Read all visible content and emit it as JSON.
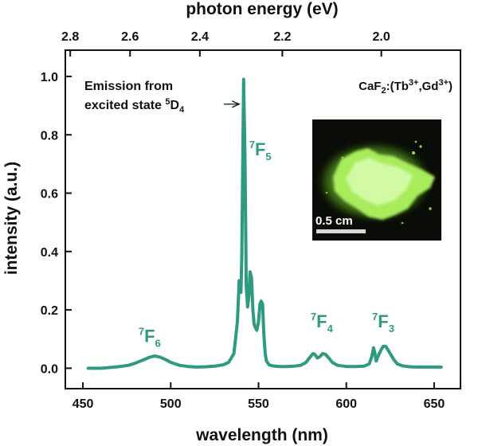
{
  "chart_data": {
    "type": "line",
    "x_label_bottom": "wavelength (nm)",
    "x_label_top": "photon energy (eV)",
    "ylabel": "intensity (a.u.)",
    "xlim": [
      440,
      665
    ],
    "ylim": [
      -0.07,
      1.09
    ],
    "x_ticks": [
      {
        "value": 450,
        "label": "450"
      },
      {
        "value": 500,
        "label": "500"
      },
      {
        "value": 550,
        "label": "550"
      },
      {
        "value": 600,
        "label": "600"
      },
      {
        "value": 650,
        "label": "650"
      }
    ],
    "y_ticks": [
      {
        "value": 0.0,
        "label": "0.0"
      },
      {
        "value": 0.2,
        "label": "0.2"
      },
      {
        "value": 0.4,
        "label": "0.4"
      },
      {
        "value": 0.6,
        "label": "0.6"
      },
      {
        "value": 0.8,
        "label": "0.8"
      },
      {
        "value": 1.0,
        "label": "1.0"
      }
    ],
    "top_ticks": [
      {
        "energy": 2.8,
        "label": "2.8"
      },
      {
        "energy": 2.6,
        "label": "2.6"
      },
      {
        "energy": 2.4,
        "label": "2.4"
      },
      {
        "energy": 2.2,
        "label": "2.2"
      },
      {
        "energy": 2.0,
        "label": "2.0"
      }
    ],
    "series": [
      {
        "name": "emission",
        "color": "#2e9a80",
        "x": [
          453,
          460,
          470,
          476,
          480,
          485,
          488,
          491,
          494,
          497,
          500,
          505,
          510,
          515,
          520,
          525,
          530,
          533,
          536,
          538,
          539,
          540,
          540.5,
          541.5,
          542.3,
          543,
          543.8,
          544.5,
          545.2,
          546,
          546.8,
          547.5,
          548.2,
          549,
          550,
          550.8,
          551.5,
          552.3,
          553,
          553.8,
          554.5,
          556,
          558,
          562,
          566,
          570,
          574,
          577,
          579,
          581,
          582,
          583.5,
          585,
          586.5,
          588,
          590,
          592,
          595,
          600,
          605,
          610,
          613,
          614.5,
          615.5,
          616.3,
          617,
          618,
          619.5,
          621,
          622.5,
          624,
          625.5,
          627,
          629,
          632,
          636,
          640,
          645,
          650,
          654
        ],
        "y": [
          0.0,
          0.0,
          0.005,
          0.01,
          0.018,
          0.03,
          0.038,
          0.042,
          0.038,
          0.03,
          0.02,
          0.01,
          0.006,
          0.004,
          0.005,
          0.007,
          0.012,
          0.02,
          0.05,
          0.16,
          0.3,
          0.26,
          0.38,
          0.99,
          0.72,
          0.28,
          0.21,
          0.25,
          0.33,
          0.31,
          0.2,
          0.15,
          0.14,
          0.13,
          0.16,
          0.22,
          0.23,
          0.22,
          0.12,
          0.05,
          0.025,
          0.012,
          0.008,
          0.006,
          0.006,
          0.007,
          0.01,
          0.02,
          0.035,
          0.05,
          0.048,
          0.035,
          0.04,
          0.05,
          0.048,
          0.035,
          0.02,
          0.01,
          0.006,
          0.006,
          0.007,
          0.015,
          0.04,
          0.07,
          0.05,
          0.025,
          0.04,
          0.06,
          0.075,
          0.075,
          0.06,
          0.045,
          0.03,
          0.015,
          0.008,
          0.005,
          0.004,
          0.004,
          0.004,
          0.004
        ]
      }
    ],
    "peak_labels": [
      {
        "sup": "7",
        "main": "F",
        "sub": "6",
        "x": 488,
        "y": 0.09
      },
      {
        "sup": "7",
        "main": "F",
        "sub": "5",
        "x": 551,
        "y": 0.73
      },
      {
        "sup": "7",
        "main": "F",
        "sub": "4",
        "x": 586,
        "y": 0.14
      },
      {
        "sup": "7",
        "main": "F",
        "sub": "3",
        "x": 621,
        "y": 0.14
      }
    ],
    "annotation": {
      "line1": "Emission from",
      "line2_text": "excited state ",
      "line2_sup": "5",
      "line2_main": "D",
      "line2_sub": "4",
      "arrow_target_x": 539,
      "arrow_target_y": 0.905
    },
    "sample_label": {
      "prefix": "CaF",
      "sub": "2",
      "open": ":(Tb",
      "sup1": "3+",
      "comma": ",Gd",
      "sup2": "3+",
      "close": ")"
    },
    "inset": {
      "scale_label": "0.5 cm",
      "background": "#0a0c08",
      "glow_color": "#9bf05a",
      "core_color": "#cff7a0"
    }
  }
}
